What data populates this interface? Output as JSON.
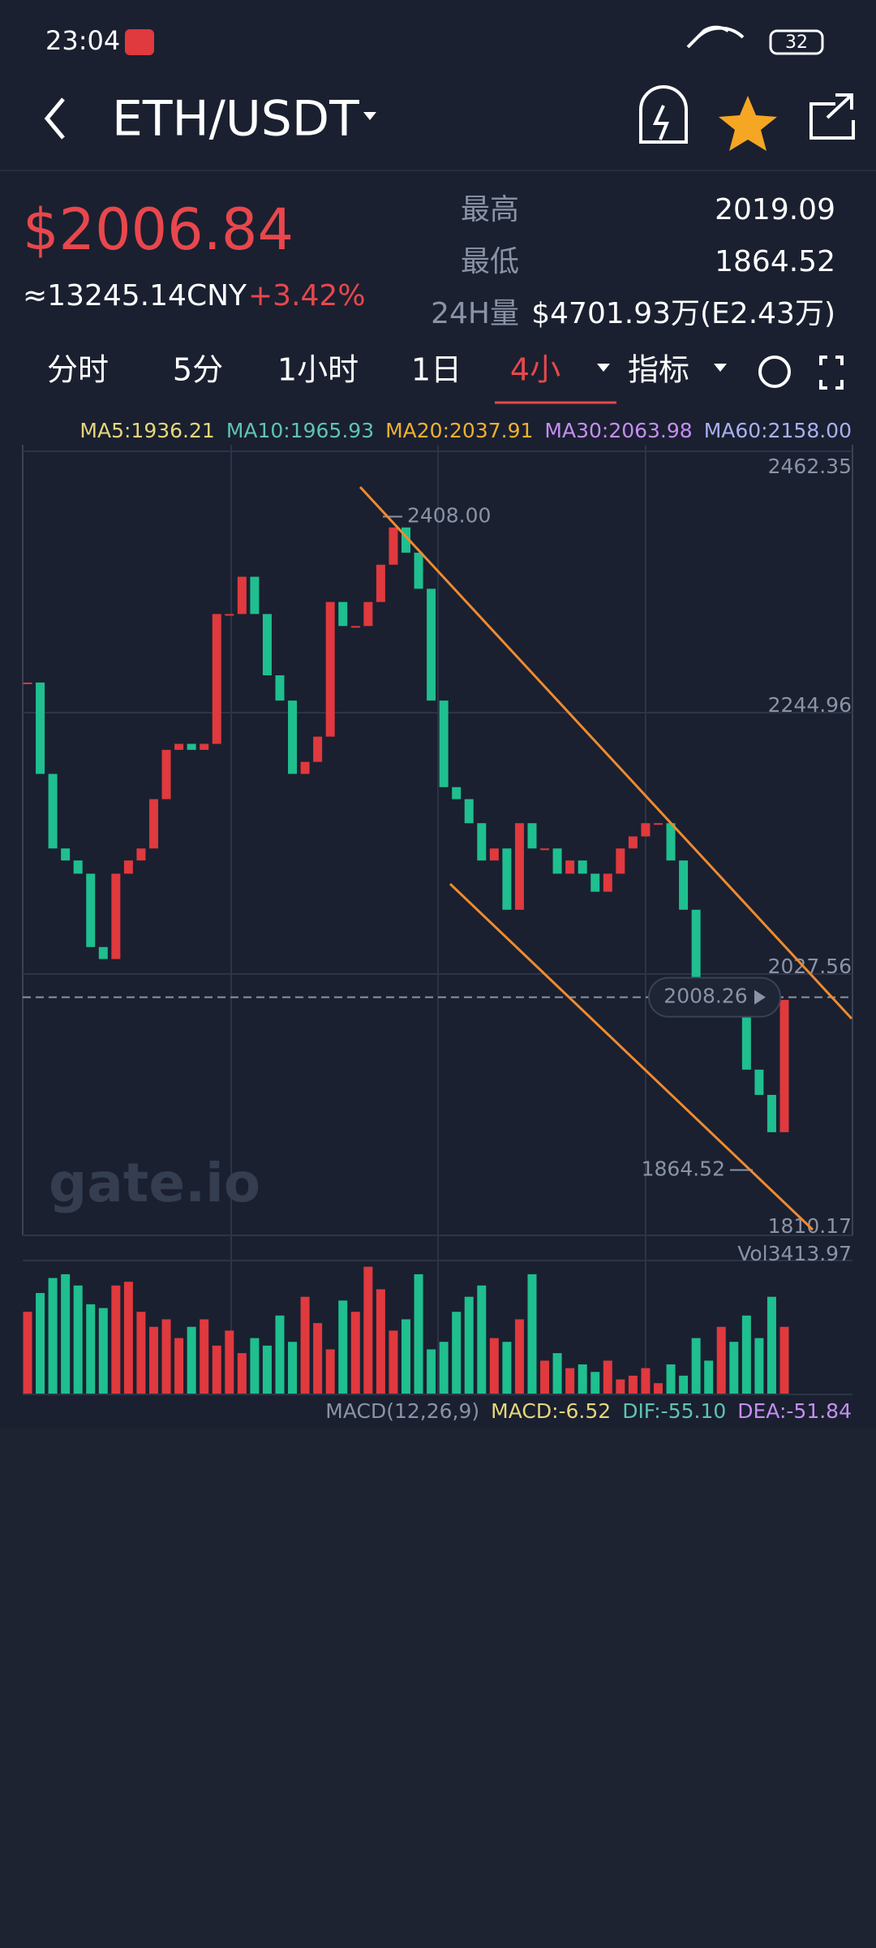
{
  "status": {
    "time": "23:04",
    "battery": "32"
  },
  "header": {
    "pair": "ETH/USDT"
  },
  "price": {
    "last": "$2006.84",
    "cny": "≈13245.14CNY",
    "change": "+3.42%"
  },
  "stats": [
    {
      "label": "最高",
      "value": "2019.09"
    },
    {
      "label": "最低",
      "value": "1864.52"
    },
    {
      "label": "24H量",
      "value": "$4701.93万(E2.43万)"
    }
  ],
  "tabs": [
    "分时",
    "5分",
    "1小时",
    "1日",
    "4小",
    "指标"
  ],
  "ma_legend": [
    {
      "text": "MA5:1936.21",
      "color": "#e6d67a"
    },
    {
      "text": "MA10:1965.93",
      "color": "#5fc4b0"
    },
    {
      "text": "MA20:2037.91",
      "color": "#f0b030"
    },
    {
      "text": "MA30:2063.98",
      "color": "#c58ef0"
    },
    {
      "text": "MA60:2158.00",
      "color": "#a8b0f0"
    }
  ],
  "chart": {
    "ylim": [
      1810.17,
      2462.35
    ],
    "yticks": [
      2462.35,
      2244.96,
      2027.56,
      1810.17
    ],
    "closes": [
      2270,
      2194,
      2132,
      2122,
      2111,
      2050,
      2040,
      2111,
      2122,
      2132,
      2173,
      2214,
      2219,
      2214,
      2219,
      2327,
      2327,
      2358,
      2327,
      2276,
      2255,
      2194,
      2204,
      2225,
      2337,
      2317,
      2317,
      2337,
      2368,
      2399,
      2378,
      2348,
      2255,
      2183,
      2173,
      2153,
      2122,
      2132,
      2081,
      2153,
      2132,
      2132,
      2111,
      2122,
      2111,
      2096,
      2111,
      2132,
      2142,
      2153,
      2153,
      2122,
      2081,
      2019,
      2009,
      2009,
      1994,
      1948,
      1927,
      1896,
      2006
    ],
    "high_marker": {
      "value": 2408.0,
      "label": "2408.00"
    },
    "current_marker": {
      "value": 2008.26,
      "label": "2008.26"
    },
    "low_marker": {
      "value": 1864.52,
      "label": "1864.52"
    },
    "up_color": "#e0393e",
    "down_color": "#1fbf8f",
    "watermark": "gate.io",
    "volume_label": "Vol3413.97",
    "volume_lim": [
      0,
      3413.97
    ],
    "volumes": [
      2200,
      2700,
      3100,
      3200,
      2900,
      2400,
      2300,
      2900,
      3000,
      2200,
      1800,
      2000,
      1500,
      1800,
      2000,
      1300,
      1700,
      1100,
      1500,
      1300,
      2100,
      1400,
      2600,
      1900,
      1200,
      2500,
      2200,
      3400,
      2800,
      1700,
      2000,
      3200,
      1200,
      1400,
      2200,
      2600,
      2900,
      1500,
      1400,
      2000,
      3200,
      900,
      1100,
      700,
      800,
      600,
      900,
      400,
      500,
      700,
      300,
      800,
      500,
      1500,
      900,
      1800,
      1400,
      2100,
      1500,
      2600,
      1800
    ],
    "macd": [
      "MACD(12,26,9)",
      "MACD:-6.52",
      "DIF:-55.10",
      "DEA:-51.84"
    ]
  }
}
